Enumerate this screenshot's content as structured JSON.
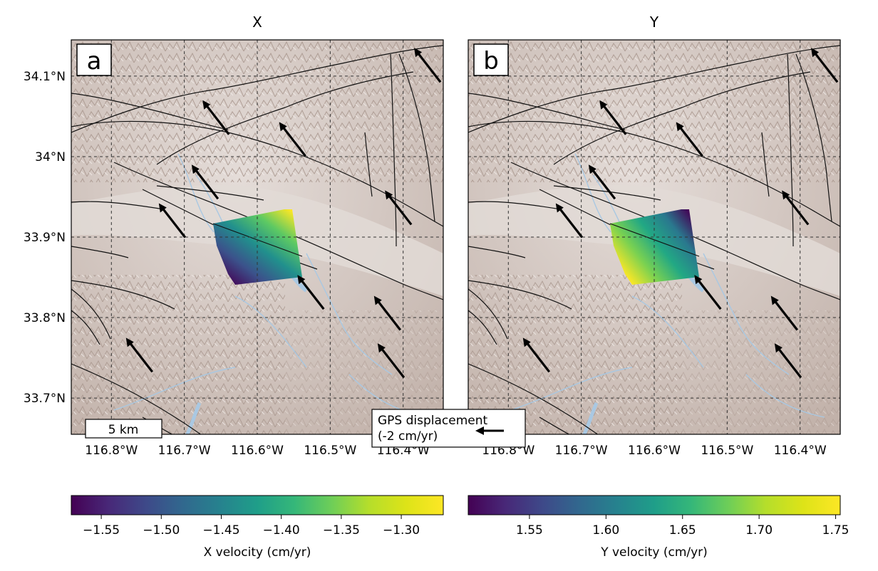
{
  "figure": {
    "panels": [
      {
        "title": "X",
        "label": "a",
        "colorbar": {
          "label": "X velocity (cm/yr)",
          "min": -1.575,
          "max": -1.265,
          "ticks": [
            -1.55,
            -1.5,
            -1.45,
            -1.4,
            -1.35,
            -1.3
          ],
          "tick_labels": [
            "−1.55",
            "−1.50",
            "−1.45",
            "−1.40",
            "−1.35",
            "−1.30"
          ],
          "colormap": "viridis"
        }
      },
      {
        "title": "Y",
        "label": "b",
        "colorbar": {
          "label": "Y velocity (cm/yr)",
          "min": 1.51,
          "max": 1.753,
          "ticks": [
            1.55,
            1.6,
            1.65,
            1.7,
            1.75
          ],
          "tick_labels": [
            "1.55",
            "1.60",
            "1.65",
            "1.70",
            "1.75"
          ],
          "colormap": "viridis"
        }
      }
    ],
    "map_extent": {
      "lon": [
        -116.855,
        -116.345
      ],
      "lat": [
        33.655,
        34.145
      ]
    },
    "lat_ticks": [
      34.1,
      34.0,
      33.9,
      33.8,
      33.7
    ],
    "lat_tick_labels": [
      "34.1°N",
      "34°N",
      "33.9°N",
      "33.8°N",
      "33.7°N"
    ],
    "lon_ticks": [
      -116.8,
      -116.7,
      -116.6,
      -116.5,
      -116.4
    ],
    "lon_tick_labels": [
      "116.8°W",
      "116.7°W",
      "116.6°W",
      "116.5°W",
      "116.4°W"
    ],
    "scale_bar_label": "5 km",
    "gps_legend": {
      "line1": "GPS displacement",
      "line2": "(-2 cm/yr)"
    },
    "gps_vectors": [
      {
        "lon": -116.385,
        "lat": 34.135
      },
      {
        "lon": -116.675,
        "lat": 34.07
      },
      {
        "lon": -116.57,
        "lat": 34.043
      },
      {
        "lon": -116.69,
        "lat": 33.99
      },
      {
        "lon": -116.425,
        "lat": 33.958
      },
      {
        "lon": -116.735,
        "lat": 33.942
      },
      {
        "lon": -116.545,
        "lat": 33.853
      },
      {
        "lon": -116.44,
        "lat": 33.827
      },
      {
        "lon": -116.78,
        "lat": 33.775
      },
      {
        "lon": -116.435,
        "lat": 33.768
      }
    ],
    "colors": {
      "terrain_base": "#cdbfb7",
      "fault": "#111111",
      "water": "#a9c8e2",
      "grid": "#333333"
    }
  }
}
